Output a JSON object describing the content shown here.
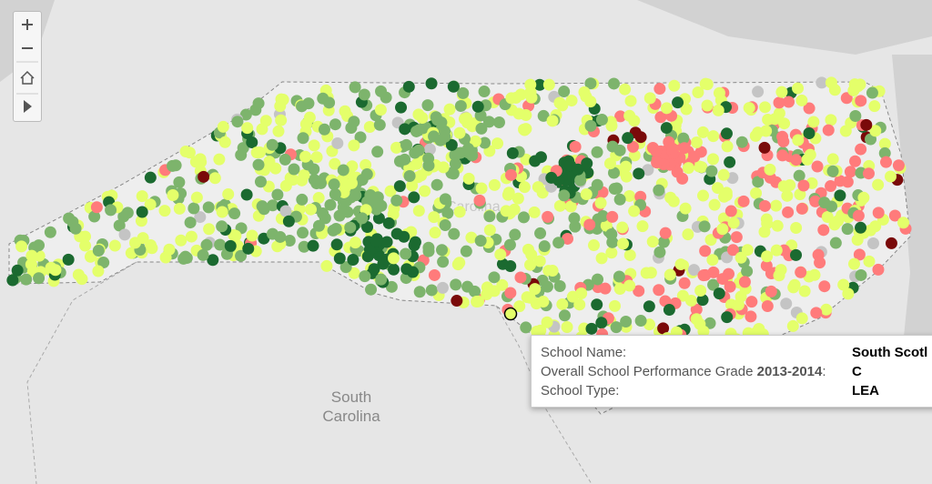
{
  "map": {
    "state_label": "Carolina",
    "neighbor_label": [
      "South",
      "Carolina"
    ]
  },
  "tooltip": {
    "rows": [
      {
        "label": "School Name:",
        "value": "South Scotl"
      },
      {
        "label": "Overall School Performance Grade ",
        "label_bold": "2013-2014",
        "label_end": ":",
        "value": "C"
      },
      {
        "label": "School Type:",
        "value": "LEA"
      }
    ]
  }
}
